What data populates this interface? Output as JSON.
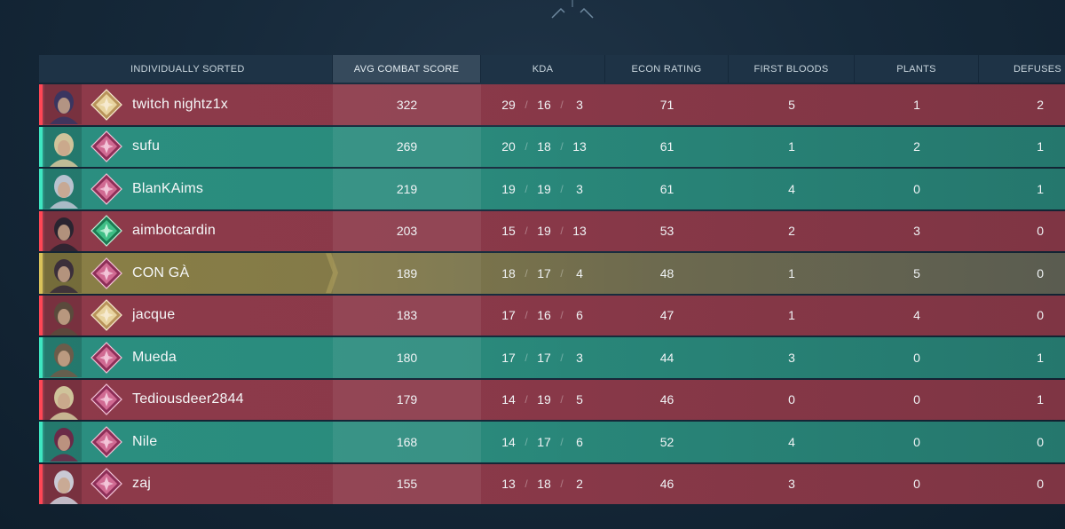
{
  "columns": {
    "player": "INDIVIDUALLY SORTED",
    "acs": "AVG COMBAT SCORE",
    "kda": "KDA",
    "econ": "ECON RATING",
    "first_bloods": "FIRST BLOODS",
    "plants": "PLANTS",
    "defuses": "DEFUSES"
  },
  "colors": {
    "red_team": "#ff4655",
    "green_team": "#3ee6c1",
    "highlight_gold": "#d9c25a"
  },
  "players": [
    {
      "name": "twitch nightz1x",
      "team": "red",
      "agent_icon": "agent-portrait-icon",
      "rank_icon": "rank-gold-icon",
      "acs": "322",
      "k": "29",
      "d": "16",
      "a": "3",
      "econ": "71",
      "fb": "5",
      "plants": "1",
      "defuses": "2"
    },
    {
      "name": "sufu",
      "team": "green",
      "agent_icon": "agent-portrait-icon",
      "rank_icon": "rank-pink-icon",
      "acs": "269",
      "k": "20",
      "d": "18",
      "a": "13",
      "econ": "61",
      "fb": "1",
      "plants": "2",
      "defuses": "1"
    },
    {
      "name": "BlanKAims",
      "team": "green",
      "agent_icon": "agent-portrait-icon",
      "rank_icon": "rank-pink-icon",
      "acs": "219",
      "k": "19",
      "d": "19",
      "a": "3",
      "econ": "61",
      "fb": "4",
      "plants": "0",
      "defuses": "1"
    },
    {
      "name": "aimbotcardin",
      "team": "red",
      "agent_icon": "agent-portrait-icon",
      "rank_icon": "rank-green-icon",
      "acs": "203",
      "k": "15",
      "d": "19",
      "a": "13",
      "econ": "53",
      "fb": "2",
      "plants": "3",
      "defuses": "0"
    },
    {
      "name": "CON GÀ",
      "team": "gold",
      "agent_icon": "agent-portrait-icon",
      "rank_icon": "rank-pink-icon",
      "acs": "189",
      "k": "18",
      "d": "17",
      "a": "4",
      "econ": "48",
      "fb": "1",
      "plants": "5",
      "defuses": "0"
    },
    {
      "name": "jacque",
      "team": "red",
      "agent_icon": "agent-portrait-icon",
      "rank_icon": "rank-gold-icon",
      "acs": "183",
      "k": "17",
      "d": "16",
      "a": "6",
      "econ": "47",
      "fb": "1",
      "plants": "4",
      "defuses": "0"
    },
    {
      "name": "Mueda",
      "team": "green",
      "agent_icon": "agent-portrait-icon",
      "rank_icon": "rank-pink-icon",
      "acs": "180",
      "k": "17",
      "d": "17",
      "a": "3",
      "econ": "44",
      "fb": "3",
      "plants": "0",
      "defuses": "1"
    },
    {
      "name": "Tediousdeer2844",
      "team": "red",
      "agent_icon": "agent-portrait-icon",
      "rank_icon": "rank-pink-icon",
      "acs": "179",
      "k": "14",
      "d": "19",
      "a": "5",
      "econ": "46",
      "fb": "0",
      "plants": "0",
      "defuses": "1"
    },
    {
      "name": "Nile",
      "team": "green",
      "agent_icon": "agent-portrait-icon",
      "rank_icon": "rank-pink-icon",
      "acs": "168",
      "k": "14",
      "d": "17",
      "a": "6",
      "econ": "52",
      "fb": "4",
      "plants": "0",
      "defuses": "0"
    },
    {
      "name": "zaj",
      "team": "red",
      "agent_icon": "agent-portrait-icon",
      "rank_icon": "rank-pink-icon",
      "acs": "155",
      "k": "13",
      "d": "18",
      "a": "2",
      "econ": "46",
      "fb": "3",
      "plants": "0",
      "defuses": "0"
    }
  ]
}
